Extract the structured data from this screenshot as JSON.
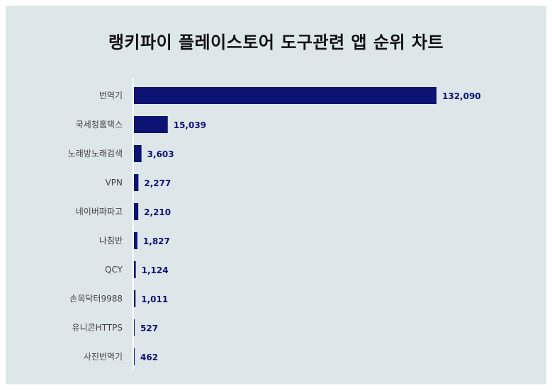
{
  "chart_data": {
    "type": "bar",
    "orientation": "horizontal",
    "title": "랭키파이 플레이스토어 도구관련 앱 순위 차트",
    "categories": [
      "번역기",
      "국세청홈택스",
      "노래방노래검색",
      "VPN",
      "네이버파파고",
      "나침반",
      "QCY",
      "손목닥터9988",
      "유니콘HTTPS",
      "사진번역기"
    ],
    "values": [
      132090,
      15039,
      3603,
      2277,
      2210,
      1827,
      1124,
      1011,
      527,
      462
    ],
    "value_labels": [
      "132,090",
      "15,039",
      "3,603",
      "2,277",
      "2,210",
      "1,827",
      "1,124",
      "1,011",
      "527",
      "462"
    ],
    "xlim": [
      0,
      132090
    ],
    "xlabel": "",
    "ylabel": "",
    "grid": false,
    "legend": "none",
    "colors": {
      "bar": "#0c1372",
      "label": "#0c1372",
      "category": "#444444",
      "background": "#dde6e9",
      "axis": "#ffffff"
    }
  }
}
